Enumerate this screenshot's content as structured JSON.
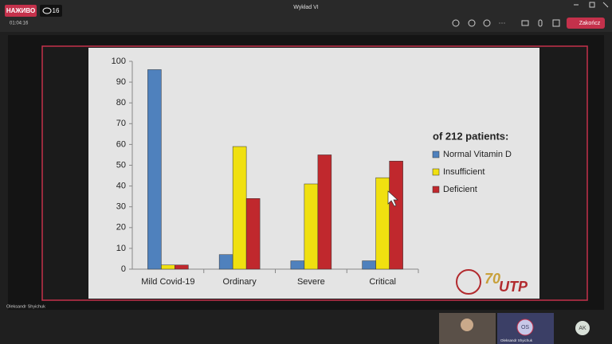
{
  "meeting": {
    "live_label": "НАЖИВО",
    "viewers": "16",
    "title": "Wykład VI",
    "timer": "01:04:16",
    "end_button": "Zakończ",
    "presenter_name": "Oleksandr Shyichuk",
    "participants": [
      {
        "name": "Oleksandr Shyichuk",
        "initials": "OS"
      },
      {
        "initials": "AK"
      }
    ]
  },
  "chart_data": {
    "type": "bar",
    "categories": [
      "Mild Covid-19",
      "Ordinary",
      "Severe",
      "Critical"
    ],
    "series": [
      {
        "name": "Normal Vitamin D",
        "color": "#4f81bd",
        "values": [
          96,
          7,
          4,
          4
        ]
      },
      {
        "name": "Insufficient",
        "color": "#f0e010",
        "values": [
          2,
          59,
          41,
          44
        ]
      },
      {
        "name": "Deficient",
        "color": "#c0282d",
        "values": [
          2,
          34,
          55,
          52
        ]
      }
    ],
    "ylim": [
      0,
      100
    ],
    "yticks": [
      0,
      10,
      20,
      30,
      40,
      50,
      60,
      70,
      80,
      90,
      100
    ],
    "grid": false,
    "legend_title": "of 212 patients:",
    "legend_position": "right",
    "logo_number": "70",
    "logo_text": "UTP"
  }
}
